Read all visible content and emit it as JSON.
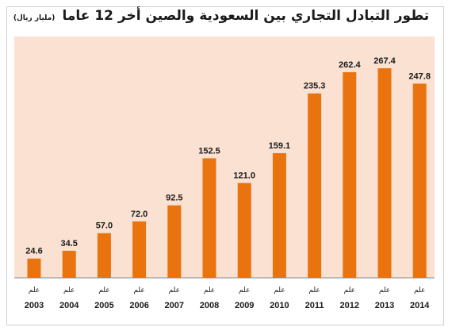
{
  "chart_data": {
    "type": "bar",
    "title": "تطور التبادل التجاري بين السعودية والصين أخر 12 عاما",
    "subtitle": "(مليار ريال)",
    "category_prefix": "علم",
    "categories": [
      "2003",
      "2004",
      "2005",
      "2006",
      "2007",
      "2008",
      "2009",
      "2010",
      "2011",
      "2012",
      "2013",
      "2014"
    ],
    "values": [
      24.6,
      34.5,
      57.0,
      72.0,
      92.5,
      152.5,
      121.0,
      159.1,
      235.3,
      262.4,
      267.4,
      247.8
    ],
    "value_labels": [
      "24.6",
      "34.5",
      "57.0",
      "72.0",
      "92.5",
      "152.5",
      "121.0",
      "159.1",
      "235.3",
      "262.4",
      "267.4",
      "247.8"
    ],
    "ylim": [
      0,
      280
    ],
    "grid": false,
    "legend": "none",
    "colors": {
      "bar": "#e8730f",
      "plot_background": "#fbe1d2",
      "axis": "#8a8a8a"
    }
  }
}
